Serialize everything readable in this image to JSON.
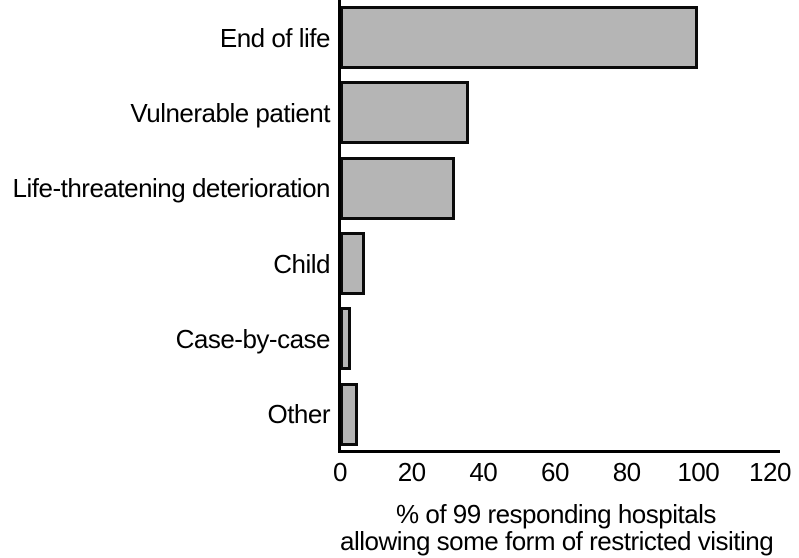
{
  "chart_data": {
    "type": "bar",
    "orientation": "horizontal",
    "categories": [
      "End of life",
      "Vulnerable patient",
      "Life-threatening deterioration",
      "Child",
      "Case-by-case",
      "Other"
    ],
    "values": [
      100,
      36,
      32,
      7,
      3,
      5
    ],
    "xlim": [
      0,
      120
    ],
    "xticks": [
      0,
      20,
      40,
      60,
      80,
      100,
      120
    ],
    "xlabel_lines": [
      "% of 99 responding hospitals",
      "allowing some form of restricted visiting"
    ],
    "title": "",
    "legend": null,
    "grid": false,
    "bar_color": "#b5b5b5",
    "bar_border_color": "#0a0a0a",
    "axis_color": "#000000",
    "text_color": "#000000",
    "background_color": "#ffffff"
  }
}
